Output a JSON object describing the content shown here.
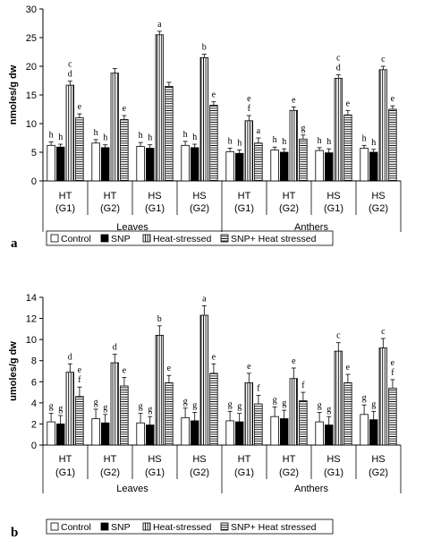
{
  "chart_data": [
    {
      "type": "bar",
      "panel_label": "a",
      "ylabel": "nmoles/g dw",
      "ylim": [
        0,
        30
      ],
      "yticks": [
        "0",
        "5",
        "10",
        "15",
        "20",
        "25",
        "30"
      ],
      "categories": [
        {
          "line1": "HT",
          "line2": "(G1)"
        },
        {
          "line1": "HT",
          "line2": "(G2)"
        },
        {
          "line1": "HS",
          "line2": "(G1)"
        },
        {
          "line1": "HS",
          "line2": "(G2)"
        },
        {
          "line1": "HT",
          "line2": "(G1)"
        },
        {
          "line1": "HT",
          "line2": "(G2)"
        },
        {
          "line1": "HS",
          "line2": "(G1)"
        },
        {
          "line1": "HS",
          "line2": "(G2)"
        }
      ],
      "groups": [
        "Leaves",
        "Anthers"
      ],
      "series": [
        {
          "name": "Control",
          "values": [
            6.2,
            6.6,
            6.0,
            6.2,
            5.1,
            5.4,
            5.3,
            5.7
          ],
          "errors": [
            0.6,
            0.6,
            0.7,
            0.7,
            0.6,
            0.5,
            0.5,
            0.5
          ],
          "labels": [
            "h",
            "h",
            "h",
            "h",
            "h",
            "h",
            "h",
            "h"
          ]
        },
        {
          "name": "SNP",
          "values": [
            5.9,
            5.8,
            5.7,
            5.8,
            4.8,
            5.0,
            4.9,
            5.0
          ],
          "errors": [
            0.5,
            0.5,
            0.6,
            0.6,
            0.6,
            0.6,
            0.7,
            0.5
          ],
          "labels": [
            "h",
            "h",
            "h",
            "h",
            "h",
            "h",
            "h",
            "h"
          ]
        },
        {
          "name": "Heat-stressed",
          "values": [
            16.7,
            18.8,
            25.5,
            21.5,
            10.5,
            12.3,
            17.9,
            19.4
          ],
          "errors": [
            0.7,
            0.8,
            0.6,
            0.6,
            0.9,
            0.6,
            0.6,
            0.6
          ],
          "labels": [
            "c\nd",
            "",
            "a",
            "b",
            "e\nf",
            "e",
            "c\nd",
            "c"
          ]
        },
        {
          "name": "SNP+ Heat stressed",
          "values": [
            11.0,
            10.7,
            16.5,
            13.2,
            6.6,
            7.3,
            11.5,
            12.5
          ],
          "errors": [
            0.7,
            0.7,
            0.7,
            0.6,
            0.9,
            0.7,
            0.8,
            0.6
          ],
          "labels": [
            "e",
            "e",
            "",
            "e",
            "a",
            "g",
            "e",
            "e"
          ]
        }
      ]
    },
    {
      "type": "bar",
      "panel_label": "b",
      "ylabel": "umoles/g dw",
      "ylim": [
        0,
        14
      ],
      "yticks": [
        "0",
        "2",
        "4",
        "6",
        "8",
        "10",
        "12",
        "14"
      ],
      "categories": [
        {
          "line1": "HT",
          "line2": "(G1)"
        },
        {
          "line1": "HT",
          "line2": "(G2)"
        },
        {
          "line1": "HS",
          "line2": "(G1)"
        },
        {
          "line1": "HS",
          "line2": "(G2)"
        },
        {
          "line1": "HT",
          "line2": "(G1)"
        },
        {
          "line1": "HT",
          "line2": "(G2)"
        },
        {
          "line1": "HS",
          "line2": "(G1)"
        },
        {
          "line1": "HS",
          "line2": "(G2)"
        }
      ],
      "groups": [
        "Leaves",
        "Anthers"
      ],
      "series": [
        {
          "name": "Control",
          "values": [
            2.2,
            2.5,
            2.1,
            2.6,
            2.3,
            2.7,
            2.2,
            2.9
          ],
          "errors": [
            0.8,
            0.9,
            0.9,
            0.9,
            0.9,
            0.9,
            0.9,
            0.9
          ],
          "labels": [
            "g",
            "g",
            "g",
            "g",
            "g",
            "g",
            "g",
            "g"
          ]
        },
        {
          "name": "SNP",
          "values": [
            2.0,
            2.1,
            1.9,
            2.3,
            2.2,
            2.5,
            1.9,
            2.4
          ],
          "errors": [
            0.8,
            0.8,
            0.8,
            0.8,
            0.8,
            0.8,
            0.8,
            0.8
          ],
          "labels": [
            "g",
            "g",
            "g",
            "g",
            "g",
            "g",
            "g",
            "g"
          ]
        },
        {
          "name": "Heat-stressed",
          "values": [
            6.9,
            7.8,
            10.4,
            12.3,
            5.9,
            6.3,
            8.9,
            9.2
          ],
          "errors": [
            0.8,
            0.8,
            0.9,
            0.9,
            0.9,
            1.0,
            0.8,
            0.9
          ],
          "labels": [
            "d",
            "d",
            "b",
            "a",
            "e",
            "e",
            "c",
            "c"
          ]
        },
        {
          "name": "SNP+ Heat stressed",
          "values": [
            4.6,
            5.6,
            5.9,
            6.8,
            3.9,
            4.2,
            5.9,
            5.4
          ],
          "errors": [
            0.9,
            0.8,
            0.7,
            0.9,
            0.8,
            0.8,
            0.8,
            0.8
          ],
          "labels": [
            "e\nf",
            "e",
            "e",
            "e",
            "f",
            "f",
            "e",
            "e\nf"
          ]
        }
      ]
    }
  ]
}
